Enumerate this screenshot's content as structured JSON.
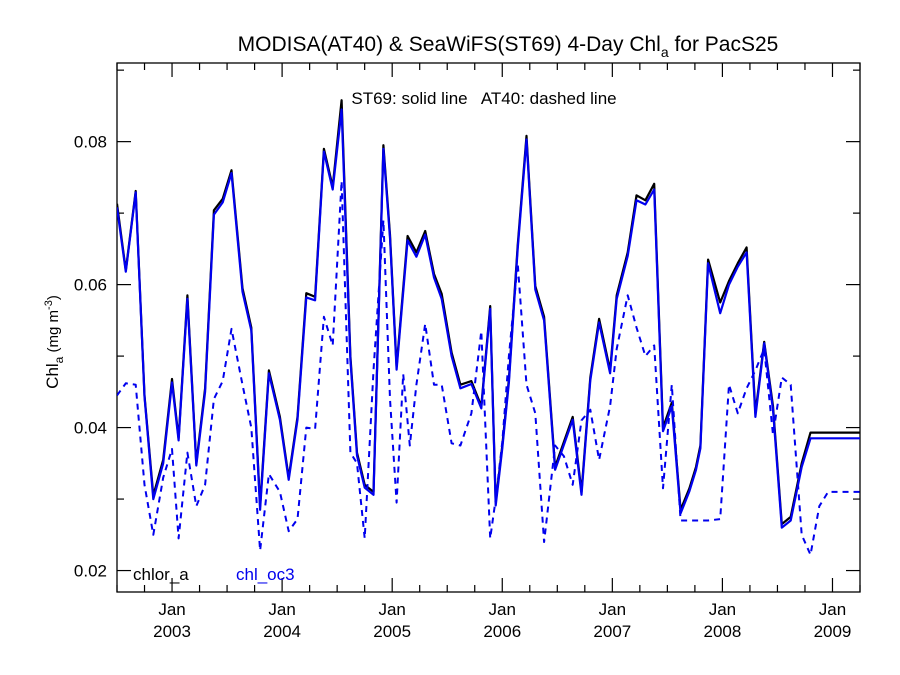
{
  "chart_data": {
    "type": "line",
    "title": "MODISA(AT40) & SeaWiFS(ST69) 4-Day Chl",
    "title_sub": "a",
    "title_suffix": " for PacS25",
    "ylabel": "Chl",
    "ylabel_sub": "a",
    "ylabel_unit": " (mg m",
    "ylabel_sup": "-3",
    "ylabel_close": ")",
    "annotation": "ST69: solid line   AT40: dashed line",
    "ylim": [
      0.017,
      0.091
    ],
    "xlim": [
      2002.5,
      2009.25
    ],
    "y_ticks": [
      0.02,
      0.04,
      0.06,
      0.08
    ],
    "y_tick_labels": [
      "0.02",
      "0.04",
      "0.06",
      "0.08"
    ],
    "x_ticks": [
      2003,
      2004,
      2005,
      2006,
      2007,
      2008,
      2009
    ],
    "x_tick_month": "Jan",
    "x_tick_years": [
      "2003",
      "2004",
      "2005",
      "2006",
      "2007",
      "2008",
      "2009"
    ],
    "grid": false,
    "legend": [
      {
        "label": "chlor_a",
        "color": "#000000"
      },
      {
        "label": "chl_oc3",
        "color": "#0000ee"
      }
    ],
    "series": [
      {
        "label": "chlor_a",
        "color": "#000000",
        "style": "solid",
        "x": [
          2002.5,
          2002.58,
          2002.67,
          2002.75,
          2002.83,
          2002.92,
          2003.0,
          2003.06,
          2003.14,
          2003.22,
          2003.3,
          2003.38,
          2003.46,
          2003.54,
          2003.64,
          2003.72,
          2003.8,
          2003.88,
          2003.98,
          2004.06,
          2004.14,
          2004.22,
          2004.3,
          2004.38,
          2004.46,
          2004.54,
          2004.62,
          2004.68,
          2004.75,
          2004.83,
          2004.92,
          2004.98,
          2005.04,
          2005.14,
          2005.22,
          2005.3,
          2005.38,
          2005.45,
          2005.54,
          2005.62,
          2005.72,
          2005.81,
          2005.89,
          2005.94,
          2006.0,
          2006.06,
          2006.14,
          2006.22,
          2006.3,
          2006.38,
          2006.48,
          2006.56,
          2006.64,
          2006.72,
          2006.8,
          2006.88,
          2006.98,
          2007.04,
          2007.14,
          2007.22,
          2007.3,
          2007.38,
          2007.46,
          2007.54,
          2007.62,
          2007.7,
          2007.76,
          2007.8,
          2007.87,
          2007.98,
          2008.06,
          2008.14,
          2008.22,
          2008.3,
          2008.38,
          2008.46,
          2008.54,
          2008.62,
          2008.72,
          2008.8,
          2008.88,
          2008.96,
          2009.0,
          2009.06,
          2009.14,
          2009.25
        ],
        "y": [
          0.0713,
          0.062,
          0.0731,
          0.0445,
          0.0305,
          0.0355,
          0.0468,
          0.0385,
          0.0585,
          0.035,
          0.0455,
          0.0704,
          0.072,
          0.076,
          0.0595,
          0.054,
          0.029,
          0.048,
          0.0415,
          0.033,
          0.0415,
          0.0588,
          0.0583,
          0.079,
          0.0737,
          0.0858,
          0.05,
          0.0365,
          0.032,
          0.031,
          0.0795,
          0.067,
          0.0485,
          0.0668,
          0.0645,
          0.0675,
          0.0615,
          0.0587,
          0.0505,
          0.046,
          0.0465,
          0.043,
          0.057,
          0.0295,
          0.0375,
          0.0468,
          0.0655,
          0.0808,
          0.0598,
          0.0555,
          0.0345,
          0.038,
          0.0415,
          0.031,
          0.047,
          0.0552,
          0.048,
          0.0585,
          0.0645,
          0.0725,
          0.0718,
          0.0741,
          0.04,
          0.0435,
          0.0285,
          0.0315,
          0.0345,
          0.0375,
          0.0635,
          0.0575,
          0.0605,
          0.063,
          0.0652,
          0.042,
          0.052,
          0.043,
          0.0265,
          0.0275,
          0.035,
          0.0393,
          0.0393,
          0.0393,
          0.0393,
          0.0393,
          0.0393,
          0.0393
        ]
      },
      {
        "label": "chl_oc3",
        "color": "#0000ee",
        "style": "solid",
        "x": [
          2002.5,
          2002.58,
          2002.67,
          2002.75,
          2002.83,
          2002.92,
          2003.0,
          2003.06,
          2003.14,
          2003.22,
          2003.3,
          2003.38,
          2003.46,
          2003.54,
          2003.64,
          2003.72,
          2003.8,
          2003.88,
          2003.98,
          2004.06,
          2004.14,
          2004.22,
          2004.3,
          2004.38,
          2004.46,
          2004.54,
          2004.62,
          2004.68,
          2004.75,
          2004.83,
          2004.92,
          2004.98,
          2005.04,
          2005.14,
          2005.22,
          2005.3,
          2005.38,
          2005.45,
          2005.54,
          2005.62,
          2005.72,
          2005.81,
          2005.89,
          2005.94,
          2006.0,
          2006.06,
          2006.14,
          2006.22,
          2006.3,
          2006.38,
          2006.48,
          2006.56,
          2006.64,
          2006.72,
          2006.8,
          2006.88,
          2006.98,
          2007.04,
          2007.14,
          2007.22,
          2007.3,
          2007.38,
          2007.46,
          2007.54,
          2007.62,
          2007.7,
          2007.76,
          2007.8,
          2007.87,
          2007.98,
          2008.06,
          2008.14,
          2008.22,
          2008.3,
          2008.38,
          2008.46,
          2008.54,
          2008.62,
          2008.72,
          2008.8,
          2008.88,
          2008.96,
          2009.0,
          2009.06,
          2009.14,
          2009.25
        ],
        "y": [
          0.0708,
          0.0618,
          0.0729,
          0.0443,
          0.03,
          0.035,
          0.0463,
          0.0382,
          0.058,
          0.0347,
          0.045,
          0.0698,
          0.0715,
          0.0756,
          0.059,
          0.0536,
          0.0285,
          0.0476,
          0.0411,
          0.0327,
          0.0411,
          0.0582,
          0.0578,
          0.0786,
          0.0733,
          0.0845,
          0.0495,
          0.0361,
          0.0316,
          0.0306,
          0.079,
          0.0665,
          0.0481,
          0.0662,
          0.0639,
          0.067,
          0.061,
          0.058,
          0.05,
          0.0455,
          0.0461,
          0.0427,
          0.0566,
          0.0291,
          0.0371,
          0.0463,
          0.065,
          0.0803,
          0.0593,
          0.055,
          0.0341,
          0.0376,
          0.0411,
          0.0306,
          0.0466,
          0.0547,
          0.0476,
          0.058,
          0.064,
          0.0718,
          0.0712,
          0.0733,
          0.0395,
          0.043,
          0.028,
          0.0311,
          0.0341,
          0.0371,
          0.063,
          0.056,
          0.06,
          0.0625,
          0.0645,
          0.0415,
          0.0518,
          0.0425,
          0.026,
          0.027,
          0.0345,
          0.0385,
          0.0385,
          0.0385,
          0.0385,
          0.0385,
          0.0385,
          0.0385
        ]
      },
      {
        "label": "chl_oc3",
        "color": "#0000ee",
        "style": "dashed",
        "x": [
          2002.5,
          2002.58,
          2002.67,
          2002.75,
          2002.83,
          2002.92,
          2003.0,
          2003.06,
          2003.14,
          2003.22,
          2003.3,
          2003.38,
          2003.46,
          2003.54,
          2003.64,
          2003.72,
          2003.8,
          2003.88,
          2003.98,
          2004.06,
          2004.14,
          2004.22,
          2004.3,
          2004.38,
          2004.46,
          2004.54,
          2004.62,
          2004.68,
          2004.75,
          2004.83,
          2004.92,
          2004.98,
          2005.04,
          2005.1,
          2005.16,
          2005.22,
          2005.3,
          2005.38,
          2005.45,
          2005.54,
          2005.62,
          2005.72,
          2005.81,
          2005.89,
          2005.94,
          2006.0,
          2006.06,
          2006.14,
          2006.22,
          2006.3,
          2006.38,
          2006.48,
          2006.56,
          2006.64,
          2006.72,
          2006.8,
          2006.88,
          2006.98,
          2007.04,
          2007.14,
          2007.22,
          2007.3,
          2007.38,
          2007.46,
          2007.54,
          2007.62,
          2007.7,
          2007.8,
          2007.87,
          2007.98,
          2008.06,
          2008.14,
          2008.22,
          2008.3,
          2008.38,
          2008.46,
          2008.54,
          2008.62,
          2008.72,
          2008.8,
          2008.88,
          2008.96,
          2009.0,
          2009.06,
          2009.14,
          2009.25
        ],
        "y": [
          0.0445,
          0.0462,
          0.046,
          0.032,
          0.025,
          0.033,
          0.037,
          0.0245,
          0.0365,
          0.029,
          0.032,
          0.044,
          0.0465,
          0.0538,
          0.046,
          0.04,
          0.0228,
          0.0335,
          0.031,
          0.0255,
          0.0272,
          0.04,
          0.0398,
          0.0555,
          0.0515,
          0.0745,
          0.0365,
          0.035,
          0.0245,
          0.048,
          0.069,
          0.044,
          0.0295,
          0.0475,
          0.0375,
          0.046,
          0.0545,
          0.046,
          0.046,
          0.0378,
          0.0375,
          0.042,
          0.0535,
          0.0245,
          0.03,
          0.038,
          0.05,
          0.063,
          0.046,
          0.042,
          0.024,
          0.0375,
          0.036,
          0.032,
          0.041,
          0.0425,
          0.0355,
          0.043,
          0.051,
          0.0585,
          0.054,
          0.05,
          0.0515,
          0.0315,
          0.046,
          0.027,
          0.027,
          0.027,
          0.027,
          0.0272,
          0.046,
          0.042,
          0.0455,
          0.048,
          0.051,
          0.039,
          0.047,
          0.046,
          0.025,
          0.0222,
          0.029,
          0.031,
          0.031,
          0.031,
          0.031,
          0.031
        ]
      }
    ]
  }
}
